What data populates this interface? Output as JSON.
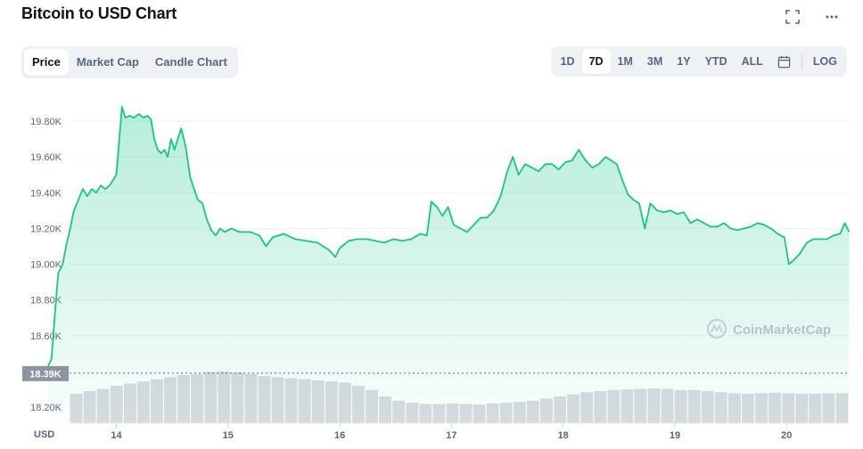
{
  "header": {
    "title": "Bitcoin to USD Chart",
    "fullscreen_icon": "fullscreen-icon",
    "more_icon": "more-horizontal-icon"
  },
  "chart_tabs": [
    {
      "label": "Price",
      "active": true
    },
    {
      "label": "Market Cap",
      "active": false
    },
    {
      "label": "Candle Chart",
      "active": false
    }
  ],
  "range_tabs": [
    {
      "label": "1D",
      "active": false
    },
    {
      "label": "7D",
      "active": true
    },
    {
      "label": "1M",
      "active": false
    },
    {
      "label": "3M",
      "active": false
    },
    {
      "label": "1Y",
      "active": false
    },
    {
      "label": "YTD",
      "active": false
    },
    {
      "label": "ALL",
      "active": false
    }
  ],
  "calendar_icon": "calendar-icon",
  "log_label": "LOG",
  "watermark": "CoinMarketCap",
  "colors": {
    "line": "#16c784",
    "fill_top": "#16c784",
    "volume": "#cfd2d8",
    "price_marker_bg": "#8d93a0",
    "axis_text": "#58667e",
    "grid": "#eff2f5"
  },
  "chart_data": {
    "type": "area",
    "currency_label": "USD",
    "y_ticks": [
      "19.80K",
      "19.60K",
      "19.40K",
      "19.20K",
      "19.00K",
      "18.80K",
      "18.60K",
      "18.20K"
    ],
    "y_tick_values": [
      19800,
      19600,
      19400,
      19200,
      19000,
      18800,
      18600,
      18200
    ],
    "ylim": [
      18200,
      19800
    ],
    "x_ticks": [
      "14",
      "15",
      "16",
      "17",
      "18",
      "19",
      "20"
    ],
    "current_price_label": "18.39K",
    "current_price_value": 18390,
    "grid": true,
    "series": [
      {
        "values": [
          [
            13.39,
            18430
          ],
          [
            13.42,
            18470
          ],
          [
            13.45,
            18720
          ],
          [
            13.48,
            18950
          ],
          [
            13.52,
            19000
          ],
          [
            13.55,
            19100
          ],
          [
            13.58,
            19180
          ],
          [
            13.62,
            19300
          ],
          [
            13.66,
            19360
          ],
          [
            13.7,
            19420
          ],
          [
            13.74,
            19380
          ],
          [
            13.78,
            19420
          ],
          [
            13.82,
            19400
          ],
          [
            13.86,
            19440
          ],
          [
            13.9,
            19420
          ],
          [
            13.94,
            19440
          ],
          [
            13.97,
            19470
          ],
          [
            14.0,
            19500
          ],
          [
            14.05,
            19880
          ],
          [
            14.08,
            19820
          ],
          [
            14.12,
            19830
          ],
          [
            14.16,
            19820
          ],
          [
            14.2,
            19840
          ],
          [
            14.24,
            19820
          ],
          [
            14.28,
            19830
          ],
          [
            14.31,
            19810
          ],
          [
            14.34,
            19700
          ],
          [
            14.37,
            19640
          ],
          [
            14.4,
            19620
          ],
          [
            14.43,
            19640
          ],
          [
            14.46,
            19600
          ],
          [
            14.49,
            19700
          ],
          [
            14.52,
            19640
          ],
          [
            14.55,
            19700
          ],
          [
            14.58,
            19760
          ],
          [
            14.62,
            19660
          ],
          [
            14.66,
            19490
          ],
          [
            14.69,
            19430
          ],
          [
            14.73,
            19360
          ],
          [
            14.77,
            19340
          ],
          [
            14.81,
            19250
          ],
          [
            14.85,
            19190
          ],
          [
            14.89,
            19160
          ],
          [
            14.93,
            19200
          ],
          [
            14.97,
            19180
          ],
          [
            15.03,
            19200
          ],
          [
            15.1,
            19180
          ],
          [
            15.2,
            19180
          ],
          [
            15.28,
            19160
          ],
          [
            15.34,
            19100
          ],
          [
            15.4,
            19150
          ],
          [
            15.5,
            19170
          ],
          [
            15.6,
            19140
          ],
          [
            15.7,
            19130
          ],
          [
            15.8,
            19120
          ],
          [
            15.9,
            19080
          ],
          [
            15.96,
            19040
          ],
          [
            16.0,
            19090
          ],
          [
            16.08,
            19130
          ],
          [
            16.16,
            19140
          ],
          [
            16.24,
            19140
          ],
          [
            16.32,
            19130
          ],
          [
            16.4,
            19120
          ],
          [
            16.48,
            19140
          ],
          [
            16.56,
            19130
          ],
          [
            16.64,
            19140
          ],
          [
            16.72,
            19170
          ],
          [
            16.78,
            19160
          ],
          [
            16.82,
            19350
          ],
          [
            16.87,
            19320
          ],
          [
            16.92,
            19270
          ],
          [
            16.97,
            19320
          ],
          [
            17.02,
            19220
          ],
          [
            17.08,
            19200
          ],
          [
            17.14,
            19180
          ],
          [
            17.2,
            19220
          ],
          [
            17.26,
            19260
          ],
          [
            17.32,
            19260
          ],
          [
            17.38,
            19300
          ],
          [
            17.44,
            19380
          ],
          [
            17.5,
            19520
          ],
          [
            17.55,
            19600
          ],
          [
            17.6,
            19500
          ],
          [
            17.66,
            19560
          ],
          [
            17.72,
            19540
          ],
          [
            17.78,
            19520
          ],
          [
            17.84,
            19560
          ],
          [
            17.9,
            19560
          ],
          [
            17.96,
            19530
          ],
          [
            18.02,
            19570
          ],
          [
            18.08,
            19580
          ],
          [
            18.14,
            19640
          ],
          [
            18.2,
            19580
          ],
          [
            18.26,
            19540
          ],
          [
            18.32,
            19560
          ],
          [
            18.38,
            19600
          ],
          [
            18.43,
            19580
          ],
          [
            18.48,
            19560
          ],
          [
            18.53,
            19470
          ],
          [
            18.58,
            19390
          ],
          [
            18.63,
            19360
          ],
          [
            18.68,
            19340
          ],
          [
            18.73,
            19200
          ],
          [
            18.78,
            19340
          ],
          [
            18.84,
            19300
          ],
          [
            18.9,
            19290
          ],
          [
            18.96,
            19300
          ],
          [
            19.02,
            19280
          ],
          [
            19.08,
            19290
          ],
          [
            19.14,
            19230
          ],
          [
            19.2,
            19250
          ],
          [
            19.26,
            19230
          ],
          [
            19.32,
            19210
          ],
          [
            19.38,
            19210
          ],
          [
            19.44,
            19230
          ],
          [
            19.5,
            19200
          ],
          [
            19.56,
            19190
          ],
          [
            19.62,
            19200
          ],
          [
            19.68,
            19210
          ],
          [
            19.74,
            19230
          ],
          [
            19.8,
            19220
          ],
          [
            19.86,
            19200
          ],
          [
            19.92,
            19170
          ],
          [
            19.98,
            19150
          ],
          [
            20.02,
            19000
          ],
          [
            20.06,
            19020
          ],
          [
            20.12,
            19060
          ],
          [
            20.18,
            19120
          ],
          [
            20.24,
            19140
          ],
          [
            20.3,
            19140
          ],
          [
            20.36,
            19140
          ],
          [
            20.42,
            19160
          ],
          [
            20.48,
            19170
          ],
          [
            20.52,
            19230
          ],
          [
            20.56,
            19180
          ]
        ]
      }
    ],
    "volume_relative": [
      0.55,
      0.6,
      0.64,
      0.7,
      0.74,
      0.78,
      0.82,
      0.86,
      0.9,
      0.92,
      0.96,
      0.97,
      0.95,
      0.92,
      0.88,
      0.86,
      0.84,
      0.82,
      0.8,
      0.78,
      0.76,
      0.7,
      0.62,
      0.5,
      0.42,
      0.38,
      0.36,
      0.36,
      0.37,
      0.36,
      0.35,
      0.37,
      0.38,
      0.4,
      0.42,
      0.46,
      0.5,
      0.54,
      0.58,
      0.6,
      0.62,
      0.63,
      0.64,
      0.65,
      0.64,
      0.62,
      0.62,
      0.6,
      0.58,
      0.56,
      0.55,
      0.56,
      0.57,
      0.56,
      0.55,
      0.55,
      0.56,
      0.56
    ]
  }
}
